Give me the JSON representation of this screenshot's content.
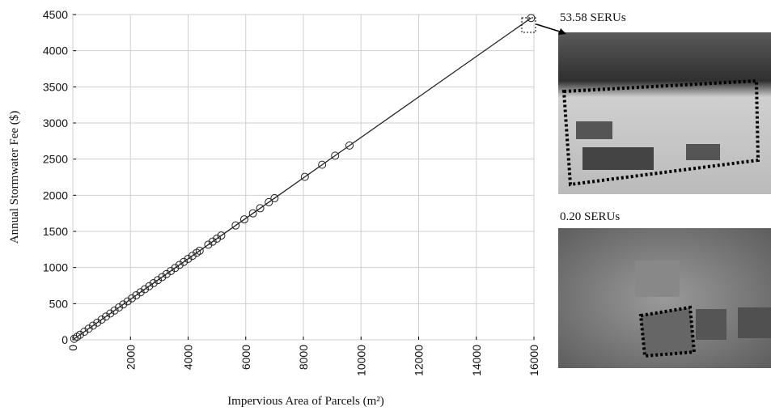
{
  "chart_data": {
    "type": "scatter",
    "x_label": "Impervious Area of Parcels (m²)",
    "y_label": "Annual Stormwater Fee ($)",
    "x": [
      50,
      150,
      250,
      400,
      550,
      700,
      850,
      1000,
      1150,
      1300,
      1450,
      1600,
      1750,
      1900,
      2050,
      2200,
      2350,
      2500,
      2650,
      2800,
      2950,
      3100,
      3250,
      3400,
      3550,
      3700,
      3850,
      4000,
      4150,
      4300,
      4400,
      4700,
      4850,
      5000,
      5150,
      5650,
      5950,
      6250,
      6500,
      6800,
      7000,
      8050,
      8650,
      9100,
      9600,
      15900
    ],
    "values": [
      14,
      42,
      70,
      112,
      154,
      196,
      238,
      280,
      322,
      364,
      406,
      448,
      490,
      532,
      574,
      616,
      658,
      700,
      742,
      784,
      826,
      868,
      910,
      952,
      994,
      1036,
      1078,
      1120,
      1162,
      1204,
      1232,
      1316,
      1358,
      1400,
      1442,
      1582,
      1666,
      1750,
      1820,
      1904,
      1960,
      2254,
      2422,
      2548,
      2688,
      4452
    ],
    "color": "#222222",
    "xlim": [
      0,
      16000
    ],
    "xticks": [
      0,
      2000,
      4000,
      6000,
      8000,
      10000,
      12000,
      14000,
      16000
    ],
    "ylim": [
      0,
      4500
    ],
    "yticks": [
      0,
      500,
      1000,
      1500,
      2000,
      2500,
      3000,
      3500,
      4000,
      4500
    ],
    "grid": true,
    "annotations": [
      "53.58 SERUs",
      "0.20 SERUs"
    ]
  }
}
